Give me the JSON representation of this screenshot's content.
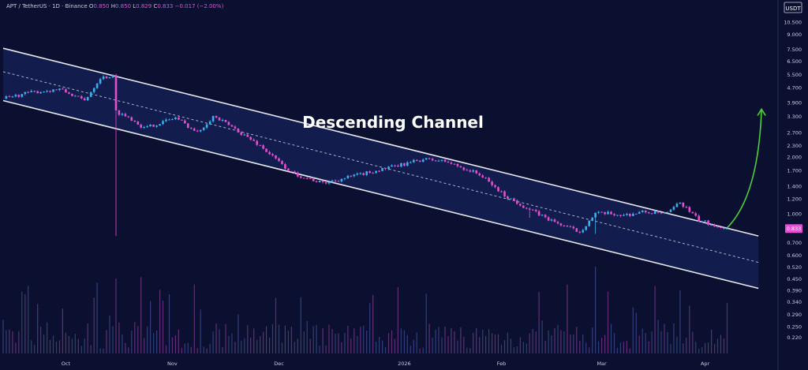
{
  "header": {
    "symbol": "APT / TetherUS · 1D · Binance",
    "open_label": "O",
    "open": "0.850",
    "high_label": "H",
    "high": "0.850",
    "low_label": "L",
    "low": "0.829",
    "close_label": "C",
    "close": "0.833",
    "change": "−0.017 (−2.00%)"
  },
  "currency_badge": "USDT",
  "current_price_label": "0.833",
  "annotation": "Descending Channel",
  "colors": {
    "background": "#0b1030",
    "channel_fill": "#142052",
    "up": "#3ab0f0",
    "down": "#e24fd1",
    "arrow": "#4cd137",
    "line": "#e8e8f0"
  },
  "chart_data": {
    "type": "candlestick",
    "title": "APT / TetherUS · 1D · Binance",
    "y_scale": "log",
    "ylim": [
      0.18,
      12.0
    ],
    "y_ticks": [
      "10.500",
      "9.000",
      "7.500",
      "6.500",
      "5.500",
      "4.700",
      "3.900",
      "3.300",
      "2.700",
      "2.300",
      "2.000",
      "1.700",
      "1.400",
      "1.200",
      "1.000",
      "0.833",
      "0.700",
      "0.600",
      "0.520",
      "0.450",
      "0.390",
      "0.340",
      "0.290",
      "0.250",
      "0.220"
    ],
    "x_ticks": [
      "Oct",
      "Nov",
      "Dec",
      "2026",
      "Feb",
      "Mar",
      "Apr"
    ],
    "x_tick_days": [
      20,
      54,
      88,
      128,
      159,
      191,
      224
    ],
    "price_path_days": [
      0,
      8,
      18,
      26,
      31,
      35,
      36,
      41,
      45,
      55,
      62,
      67,
      73,
      82,
      92,
      102,
      114,
      126,
      134,
      141,
      152,
      160,
      168,
      176,
      184,
      189,
      193,
      198,
      204,
      212,
      216,
      222,
      226,
      231
    ],
    "price_path": [
      4.1,
      4.4,
      4.6,
      4.0,
      5.3,
      5.4,
      3.5,
      3.2,
      2.85,
      3.25,
      2.7,
      3.3,
      2.9,
      2.3,
      1.65,
      1.45,
      1.62,
      1.8,
      1.95,
      1.9,
      1.62,
      1.25,
      1.05,
      0.9,
      0.8,
      1.0,
      1.0,
      0.98,
      1.02,
      1.0,
      1.15,
      0.92,
      0.88,
      0.833
    ],
    "wicks": [
      {
        "day": 36,
        "low": 0.76
      },
      {
        "day": 168,
        "low": 0.95
      },
      {
        "day": 189,
        "low": 0.78
      }
    ],
    "channel": {
      "upper": {
        "start_day": 0,
        "start": 7.6,
        "end_day": 241,
        "end": 0.76
      },
      "mid": {
        "start_day": 0,
        "start": 5.7,
        "end_day": 241,
        "end": 0.55
      },
      "lower": {
        "start_day": 0,
        "start": 4.0,
        "end_day": 241,
        "end": 0.4
      }
    },
    "breakout_arrow": {
      "from_day": 231,
      "from": 0.84,
      "to_day": 242,
      "to": 3.6
    },
    "last_close": 0.833
  }
}
